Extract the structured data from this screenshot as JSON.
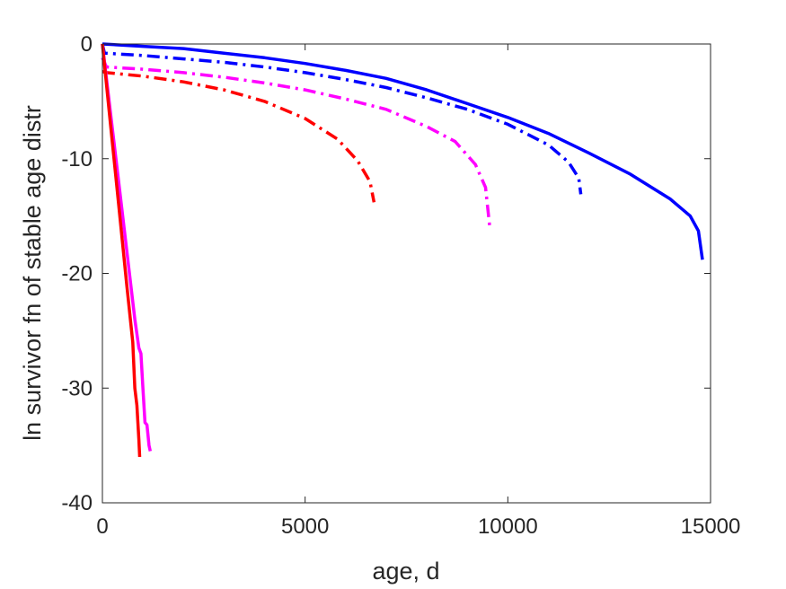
{
  "chart_data": {
    "type": "line",
    "title": "",
    "xlabel": "age, d",
    "ylabel": "ln survivor fn of stable age distr",
    "xlim": [
      0,
      15000
    ],
    "ylim": [
      -40,
      0
    ],
    "xticks": [
      0,
      5000,
      10000,
      15000
    ],
    "yticks": [
      0,
      -10,
      -20,
      -30,
      -40
    ],
    "grid": false,
    "legend": "none",
    "series": [
      {
        "color": "#0000ff",
        "style": "solid",
        "x": [
          0,
          1000,
          2000,
          3000,
          4000,
          5000,
          6000,
          7000,
          8000,
          9000,
          10000,
          11000,
          12000,
          13000,
          14000,
          14500,
          14700,
          14800
        ],
        "y": [
          0,
          -0.2,
          -0.4,
          -0.8,
          -1.2,
          -1.7,
          -2.3,
          -3.0,
          -4.0,
          -5.2,
          -6.4,
          -7.8,
          -9.5,
          -11.3,
          -13.5,
          -15.0,
          -16.3,
          -18.8
        ]
      },
      {
        "color": "#0000ff",
        "style": "dashdot",
        "x": [
          0,
          50,
          1000,
          2000,
          3000,
          4000,
          5000,
          6000,
          7000,
          8000,
          9000,
          10000,
          11000,
          11500,
          11750,
          11800
        ],
        "y": [
          0,
          -0.8,
          -1.0,
          -1.3,
          -1.6,
          -2.0,
          -2.5,
          -3.1,
          -3.8,
          -4.7,
          -5.7,
          -7.0,
          -8.8,
          -10.3,
          -11.7,
          -13.1
        ]
      },
      {
        "color": "#ff00ff",
        "style": "dashdot",
        "x": [
          0,
          100,
          1000,
          2000,
          3000,
          4000,
          5000,
          6000,
          7000,
          8000,
          8700,
          9200,
          9450,
          9550
        ],
        "y": [
          -1.2,
          -2.0,
          -2.2,
          -2.5,
          -2.9,
          -3.4,
          -4.0,
          -4.8,
          -5.7,
          -7.2,
          -8.5,
          -10.5,
          -12.5,
          -15.8
        ]
      },
      {
        "color": "#ff0000",
        "style": "dashdot",
        "x": [
          0,
          100,
          1000,
          2000,
          3000,
          4000,
          5000,
          5800,
          6300,
          6600,
          6700
        ],
        "y": [
          -2.4,
          -2.5,
          -2.8,
          -3.3,
          -4.0,
          -5.0,
          -6.5,
          -8.3,
          -10.2,
          -12.0,
          -13.8
        ]
      },
      {
        "color": "#ff00ff",
        "style": "solid",
        "x": [
          0,
          200,
          400,
          600,
          800,
          900,
          950,
          1000,
          1050,
          1100,
          1150,
          1180
        ],
        "y": [
          0,
          -6,
          -12,
          -18,
          -24,
          -26.5,
          -27,
          -30,
          -33,
          -33.2,
          -35,
          -35.5
        ]
      },
      {
        "color": "#ff0000",
        "style": "solid",
        "x": [
          0,
          200,
          400,
          600,
          750,
          800,
          850,
          900,
          920
        ],
        "y": [
          0,
          -7,
          -14,
          -21,
          -26,
          -30,
          -31.5,
          -34.5,
          -36
        ]
      }
    ]
  }
}
